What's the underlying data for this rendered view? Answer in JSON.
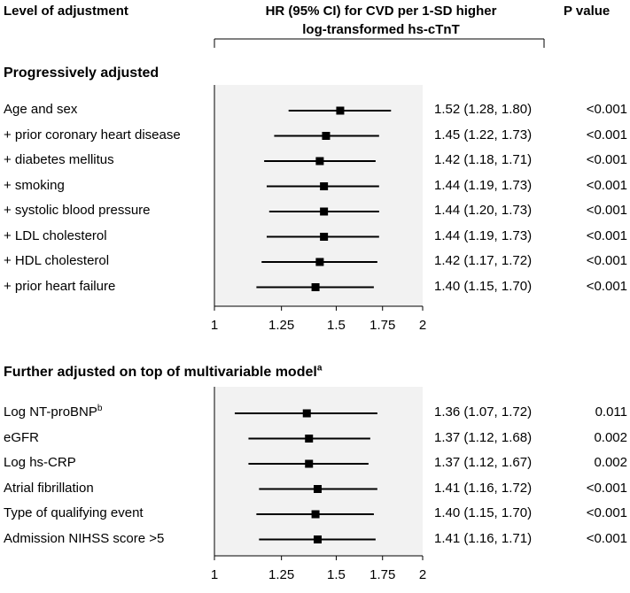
{
  "header": {
    "col1": "Level of adjustment",
    "col2_line1": "HR (95% CI) for CVD per 1-SD higher",
    "col2_line2": "log-transformed hs-cTnT",
    "col3": "P value"
  },
  "sections": [
    {
      "title": "Progressively adjusted",
      "title_sup": ""
    },
    {
      "title": "Further adjusted on top of multivariable model",
      "title_sup": "a"
    }
  ],
  "chart_data": [
    {
      "type": "forest",
      "section": "Progressively adjusted",
      "xaxis": {
        "scale": "log",
        "range": [
          1,
          2
        ],
        "ticks": [
          1,
          1.25,
          1.5,
          1.75,
          2
        ],
        "tick_labels": [
          "1",
          "1.25",
          "1.5",
          "1.75",
          "2"
        ]
      },
      "rows": [
        {
          "label": "Age and sex",
          "sup": "",
          "hr": 1.52,
          "lo": 1.28,
          "hi": 1.8,
          "ci_text": "1.52 (1.28, 1.80)",
          "p": "<0.001"
        },
        {
          "label": "+ prior coronary heart disease",
          "sup": "",
          "hr": 1.45,
          "lo": 1.22,
          "hi": 1.73,
          "ci_text": "1.45 (1.22, 1.73)",
          "p": "<0.001"
        },
        {
          "label": "+ diabetes mellitus",
          "sup": "",
          "hr": 1.42,
          "lo": 1.18,
          "hi": 1.71,
          "ci_text": "1.42 (1.18, 1.71)",
          "p": "<0.001"
        },
        {
          "label": "+ smoking",
          "sup": "",
          "hr": 1.44,
          "lo": 1.19,
          "hi": 1.73,
          "ci_text": "1.44 (1.19, 1.73)",
          "p": "<0.001"
        },
        {
          "label": "+ systolic blood pressure",
          "sup": "",
          "hr": 1.44,
          "lo": 1.2,
          "hi": 1.73,
          "ci_text": "1.44 (1.20, 1.73)",
          "p": "<0.001"
        },
        {
          "label": "+ LDL cholesterol",
          "sup": "",
          "hr": 1.44,
          "lo": 1.19,
          "hi": 1.73,
          "ci_text": "1.44 (1.19, 1.73)",
          "p": "<0.001"
        },
        {
          "label": "+ HDL cholesterol",
          "sup": "",
          "hr": 1.42,
          "lo": 1.17,
          "hi": 1.72,
          "ci_text": "1.42 (1.17, 1.72)",
          "p": "<0.001"
        },
        {
          "label": "+ prior heart failure",
          "sup": "",
          "hr": 1.4,
          "lo": 1.15,
          "hi": 1.7,
          "ci_text": "1.40 (1.15, 1.70)",
          "p": "<0.001"
        }
      ]
    },
    {
      "type": "forest",
      "section": "Further adjusted on top of multivariable model",
      "xaxis": {
        "scale": "log",
        "range": [
          1,
          2
        ],
        "ticks": [
          1,
          1.25,
          1.5,
          1.75,
          2
        ],
        "tick_labels": [
          "1",
          "1.25",
          "1.5",
          "1.75",
          "2"
        ]
      },
      "rows": [
        {
          "label": "Log NT-proBNP",
          "sup": "b",
          "hr": 1.36,
          "lo": 1.07,
          "hi": 1.72,
          "ci_text": "1.36 (1.07, 1.72)",
          "p": "0.011"
        },
        {
          "label": "eGFR",
          "sup": "",
          "hr": 1.37,
          "lo": 1.12,
          "hi": 1.68,
          "ci_text": "1.37 (1.12, 1.68)",
          "p": "0.002"
        },
        {
          "label": "Log hs-CRP",
          "sup": "",
          "hr": 1.37,
          "lo": 1.12,
          "hi": 1.67,
          "ci_text": "1.37 (1.12, 1.67)",
          "p": "0.002"
        },
        {
          "label": "Atrial fibrillation",
          "sup": "",
          "hr": 1.41,
          "lo": 1.16,
          "hi": 1.72,
          "ci_text": "1.41 (1.16, 1.72)",
          "p": "<0.001"
        },
        {
          "label": "Type of qualifying event",
          "sup": "",
          "hr": 1.4,
          "lo": 1.15,
          "hi": 1.7,
          "ci_text": "1.40 (1.15, 1.70)",
          "p": "<0.001"
        },
        {
          "label": "Admission NIHSS score >5",
          "sup": "",
          "hr": 1.41,
          "lo": 1.16,
          "hi": 1.71,
          "ci_text": "1.41 (1.16, 1.71)",
          "p": "<0.001"
        }
      ]
    }
  ]
}
